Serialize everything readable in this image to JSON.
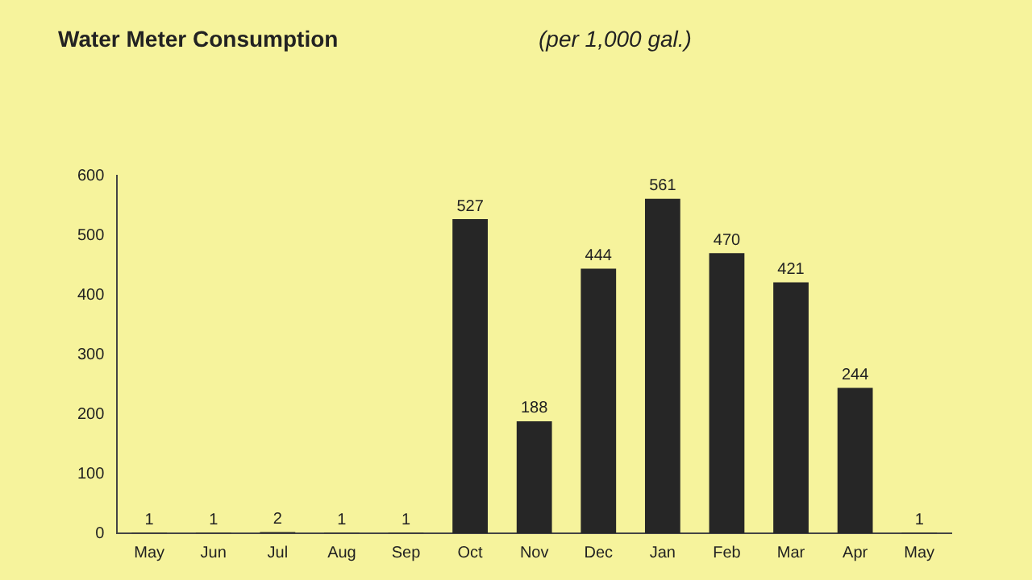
{
  "chart_data": {
    "type": "bar",
    "title": "Water Meter Consumption",
    "subtitle": "(per 1,000 gal.)",
    "categories": [
      "May",
      "Jun",
      "Jul",
      "Aug",
      "Sep",
      "Oct",
      "Nov",
      "Dec",
      "Jan",
      "Feb",
      "Mar",
      "Apr",
      "May"
    ],
    "values": [
      1,
      1,
      2,
      1,
      1,
      527,
      188,
      444,
      561,
      470,
      421,
      244,
      1
    ],
    "color": "#262626",
    "ylim": [
      0,
      600
    ],
    "yticks": [
      0,
      100,
      200,
      300,
      400,
      500,
      600
    ],
    "grid": false,
    "legend": false,
    "data_labels": true
  }
}
